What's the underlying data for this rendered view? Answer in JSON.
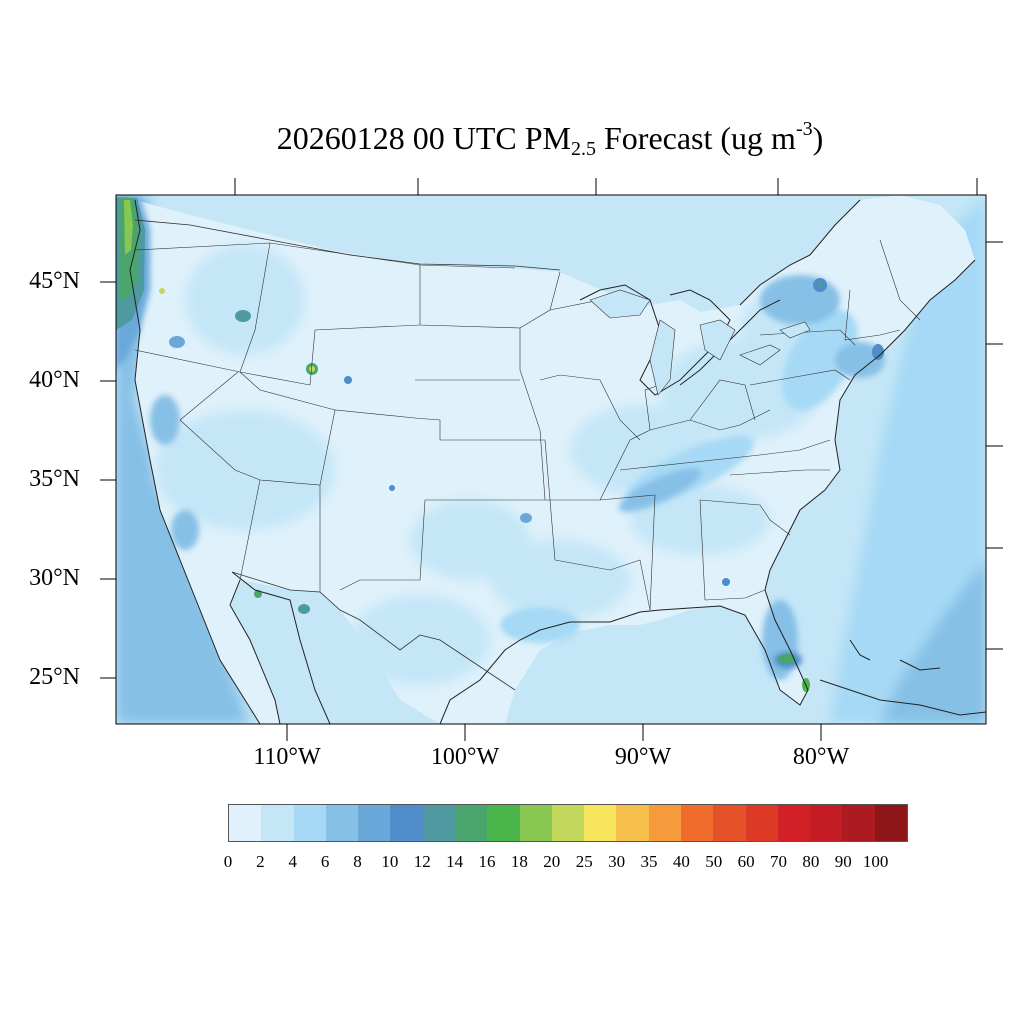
{
  "title": {
    "prefix": "20260128 00 UTC PM",
    "subscript": "2.5",
    "middle": " Forecast (ug m",
    "superscript": "-3",
    "suffix": ")"
  },
  "map": {
    "projection": "lambert-conformal",
    "region": "CONUS",
    "lat_labels": [
      "45°N",
      "40°N",
      "35°N",
      "30°N",
      "25°N"
    ],
    "lon_labels": [
      "110°W",
      "100°W",
      "90°W",
      "80°W"
    ],
    "hotspots": [
      {
        "name": "pacific-northwest-coast",
        "value_range": "14-20"
      },
      {
        "name": "southeast-florida",
        "value_range": "12-16"
      },
      {
        "name": "northeast-corridor",
        "value_range": "8-12"
      }
    ]
  },
  "colorbar": {
    "labels": [
      "0",
      "2",
      "4",
      "6",
      "8",
      "10",
      "12",
      "14",
      "16",
      "18",
      "20",
      "25",
      "30",
      "35",
      "40",
      "50",
      "60",
      "70",
      "80",
      "90",
      "100"
    ],
    "colors": [
      "#dff1fb",
      "#c4e6f7",
      "#a6d9f5",
      "#86c0e6",
      "#6aa8da",
      "#4f8cc9",
      "#4e9aa0",
      "#4aa56c",
      "#4ab54a",
      "#88c751",
      "#c2d75b",
      "#f6e55d",
      "#f6be4a",
      "#f59a3d",
      "#f06c2b",
      "#e55229",
      "#dd3a26",
      "#d32027",
      "#c31c24",
      "#ad1a22",
      "#8e1619"
    ]
  }
}
